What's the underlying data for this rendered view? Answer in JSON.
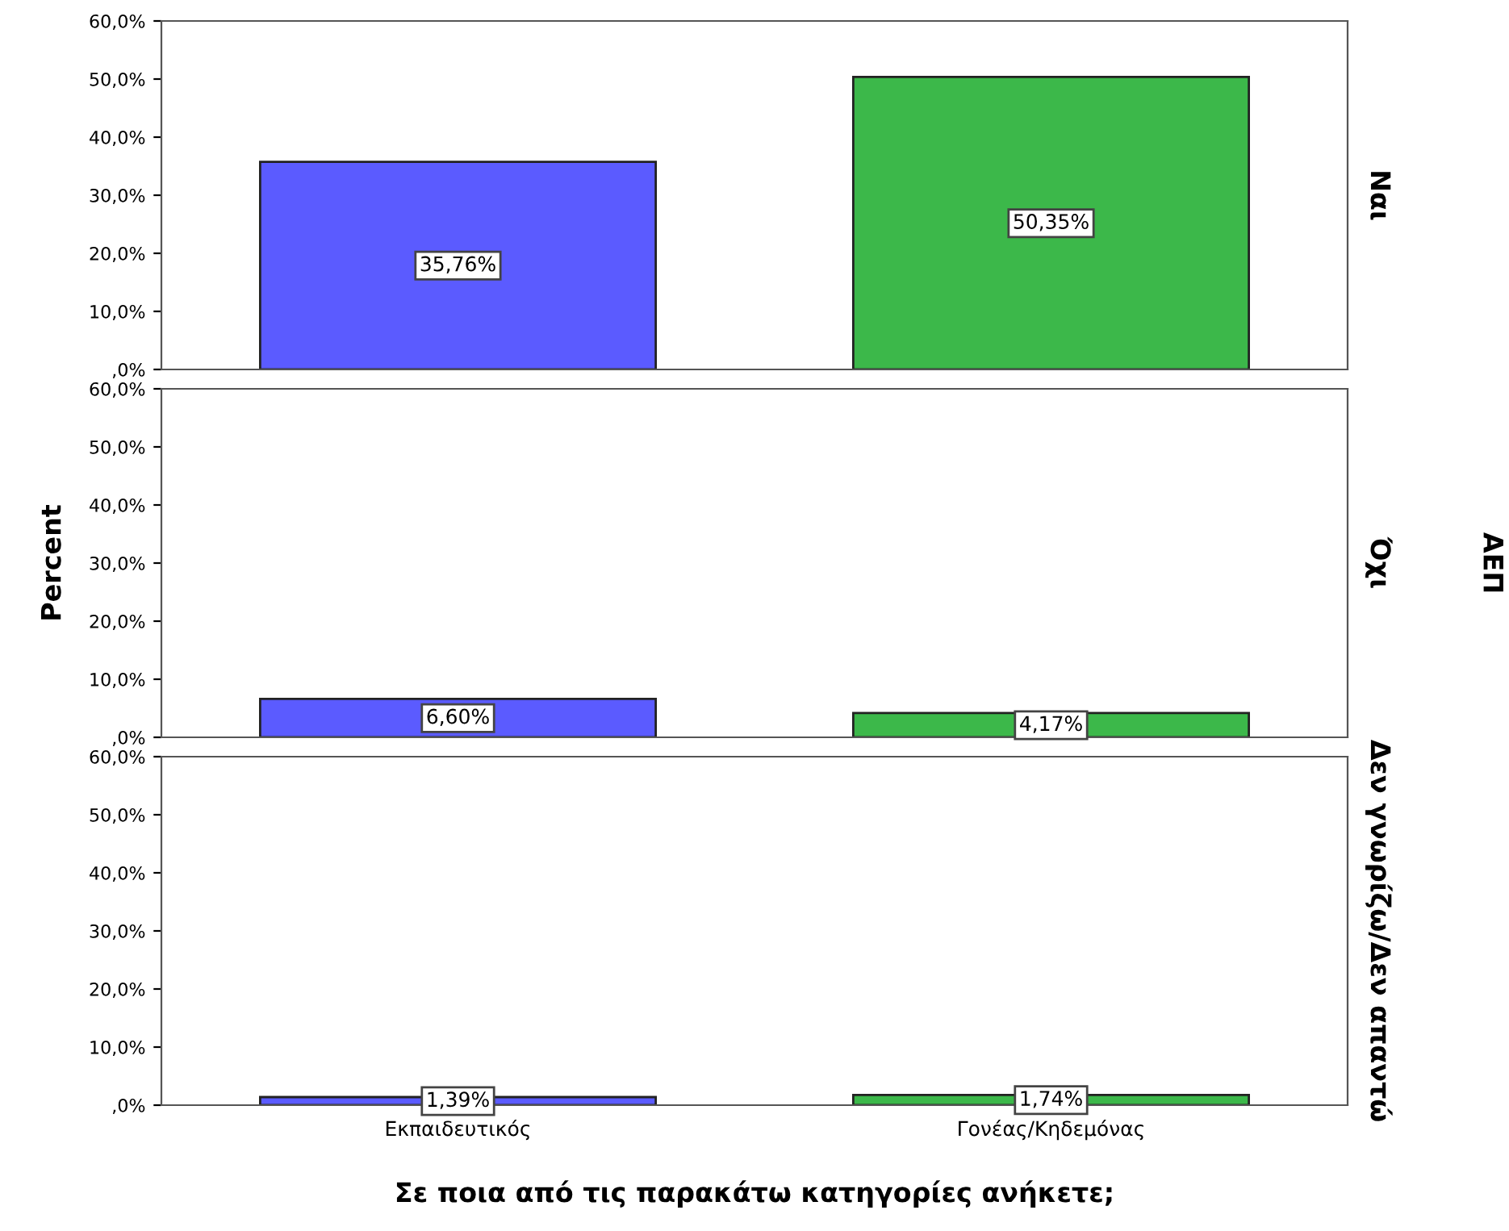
{
  "chart_data": [
    {
      "type": "bar",
      "y2label": "Ναι",
      "categories": [
        null,
        null
      ],
      "values": [
        35.76,
        50.35
      ],
      "colors": [
        "#5b5bff",
        "#3cb84a"
      ],
      "value_labels": [
        "35,76%",
        "50,35%"
      ],
      "ylim": [
        0,
        60
      ],
      "yticks": [
        {
          "value": 0,
          "label": ",0%"
        },
        {
          "value": 10,
          "label": "10,0%"
        },
        {
          "value": 20,
          "label": "20,0%"
        },
        {
          "value": 30,
          "label": "30,0%"
        },
        {
          "value": 40,
          "label": "40,0%"
        },
        {
          "value": 50,
          "label": "50,0%"
        },
        {
          "value": 60,
          "label": "60,0%"
        }
      ],
      "tick_labels": "y",
      "legend": false,
      "grid": false
    },
    {
      "type": "bar",
      "y2label": "Όχι",
      "ylabel": "Percent",
      "annotations": [
        "ΑΕΠ"
      ],
      "categories": [
        null,
        null
      ],
      "values": [
        6.6,
        4.17
      ],
      "colors": [
        "#5b5bff",
        "#3cb84a"
      ],
      "value_labels": [
        "6,60%",
        "4,17%"
      ],
      "ylim": [
        0,
        60
      ],
      "yticks": [
        {
          "value": 0,
          "label": ",0%"
        },
        {
          "value": 10,
          "label": "10,0%"
        },
        {
          "value": 20,
          "label": "20,0%"
        },
        {
          "value": 30,
          "label": "30,0%"
        },
        {
          "value": 40,
          "label": "40,0%"
        },
        {
          "value": 50,
          "label": "50,0%"
        },
        {
          "value": 60,
          "label": "60,0%"
        }
      ],
      "tick_labels": "y",
      "legend": false,
      "grid": false
    },
    {
      "type": "bar",
      "y2label": "Δεν γνωρίζω/Δεν απαντώ",
      "xlabel": "Σε ποια από τις παρακάτω κατηγορίες ανήκετε;",
      "categories": [
        "Εκπαιδευτικός",
        "Γονέας/Κηδεμόνας"
      ],
      "values": [
        1.39,
        1.74
      ],
      "colors": [
        "#5b5bff",
        "#3cb84a"
      ],
      "value_labels": [
        "1,39%",
        "1,74%"
      ],
      "ylim": [
        0,
        60
      ],
      "yticks": [
        {
          "value": 0,
          "label": ",0%"
        },
        {
          "value": 10,
          "label": "10,0%"
        },
        {
          "value": 20,
          "label": "20,0%"
        },
        {
          "value": 30,
          "label": "30,0%"
        },
        {
          "value": 40,
          "label": "40,0%"
        },
        {
          "value": 50,
          "label": "50,0%"
        },
        {
          "value": 60,
          "label": "60,0%"
        }
      ],
      "legend": false,
      "grid": false
    }
  ]
}
